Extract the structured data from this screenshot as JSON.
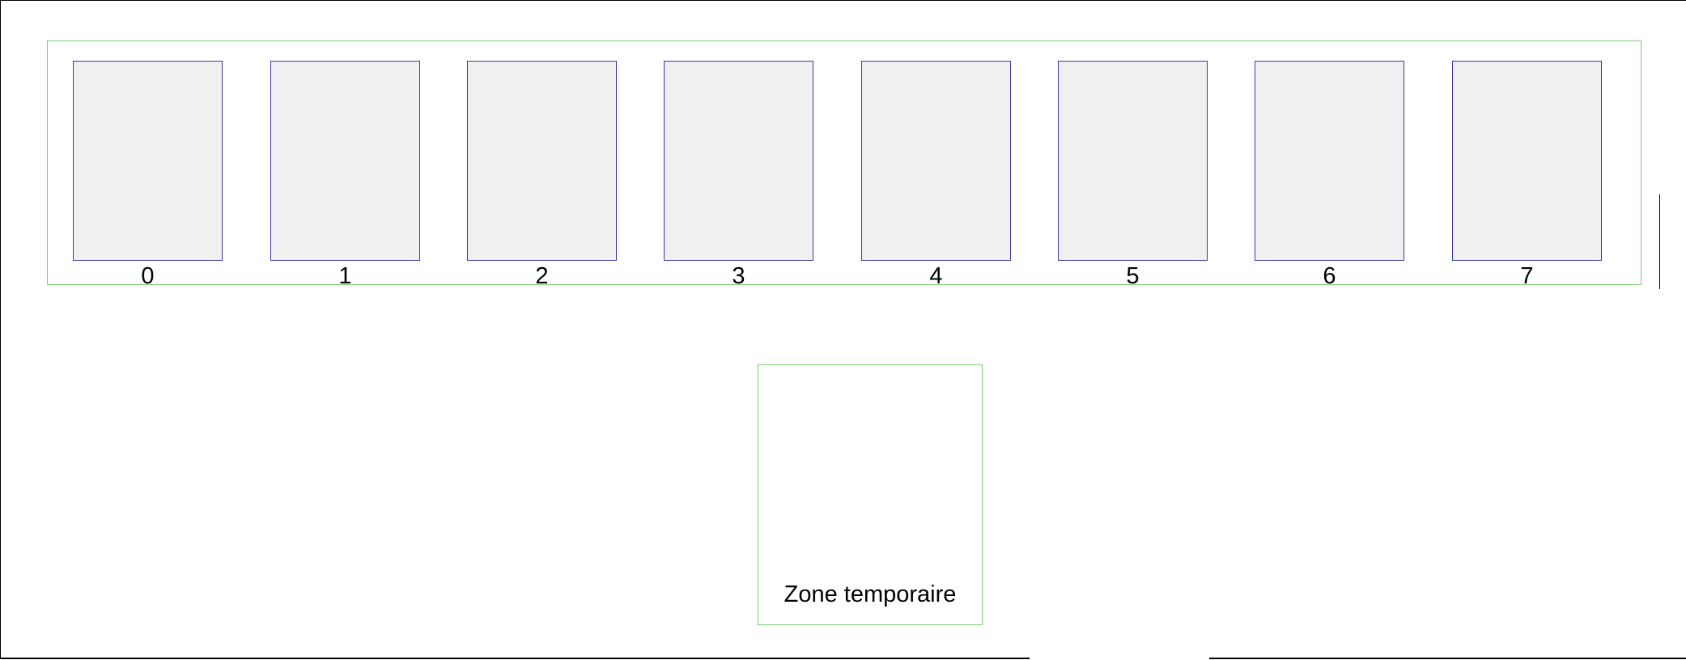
{
  "slots": {
    "labels": [
      "0",
      "1",
      "2",
      "3",
      "4",
      "5",
      "6",
      "7"
    ]
  },
  "temp_zone": {
    "label": "Zone temporaire"
  },
  "colors": {
    "zone_border": "#7ccf72",
    "card_border": "#3a3aa8",
    "card_fill": "#f0f0f0",
    "background": "#ffffff"
  }
}
